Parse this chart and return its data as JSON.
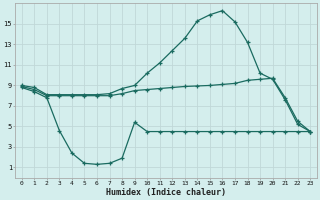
{
  "xlabel": "Humidex (Indice chaleur)",
  "bg_color": "#d4eeed",
  "grid_color": "#c0d8d8",
  "line_color": "#1a6b60",
  "x_max": [
    0,
    1,
    2,
    3,
    4,
    5,
    6,
    7,
    8,
    9,
    10,
    11,
    12,
    13,
    14,
    15,
    16,
    17,
    18,
    19,
    20,
    21,
    22,
    23
  ],
  "y_max": [
    9.0,
    8.8,
    8.1,
    8.1,
    8.1,
    8.1,
    8.1,
    8.2,
    8.7,
    9.0,
    10.2,
    11.2,
    12.4,
    13.6,
    15.3,
    15.9,
    16.3,
    15.2,
    13.2,
    10.2,
    9.6,
    7.6,
    5.2,
    4.5
  ],
  "x_mid": [
    0,
    1,
    2,
    3,
    4,
    5,
    6,
    7,
    8,
    9,
    10,
    11,
    12,
    13,
    14,
    15,
    16,
    17,
    18,
    19,
    20,
    21,
    22,
    23
  ],
  "y_mid": [
    8.9,
    8.6,
    8.0,
    8.0,
    8.0,
    8.0,
    8.0,
    8.0,
    8.2,
    8.5,
    8.6,
    8.7,
    8.8,
    8.9,
    8.95,
    9.0,
    9.1,
    9.2,
    9.5,
    9.6,
    9.7,
    7.8,
    5.5,
    4.5
  ],
  "x_min": [
    0,
    1,
    2,
    3,
    4,
    5,
    6,
    7,
    8,
    9,
    10,
    11,
    12,
    13,
    14,
    15,
    16,
    17,
    18,
    19,
    20,
    21,
    22,
    23
  ],
  "y_min": [
    8.8,
    8.4,
    7.8,
    4.6,
    2.4,
    1.4,
    1.3,
    1.4,
    1.9,
    5.4,
    4.5,
    4.5,
    4.5,
    4.5,
    4.5,
    4.5,
    4.5,
    4.5,
    4.5,
    4.5,
    4.5,
    4.5,
    4.5,
    4.5
  ],
  "yticks": [
    1,
    3,
    5,
    7,
    9,
    11,
    13,
    15
  ],
  "xticks": [
    0,
    1,
    2,
    3,
    4,
    5,
    6,
    7,
    8,
    9,
    10,
    11,
    12,
    13,
    14,
    15,
    16,
    17,
    18,
    19,
    20,
    21,
    22,
    23
  ],
  "ylim": [
    0,
    17
  ],
  "xlim": [
    -0.5,
    23.5
  ]
}
